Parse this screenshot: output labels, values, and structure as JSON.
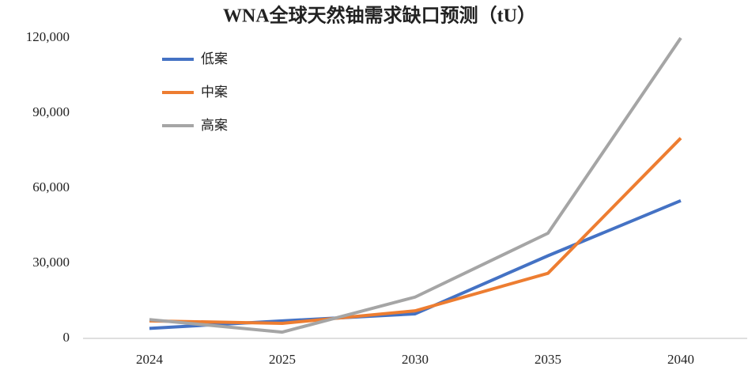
{
  "chart_data": {
    "type": "line",
    "title": "WNA全球天然铀需求缺口预测（tU）",
    "categories": [
      "2024",
      "2025",
      "2030",
      "2035",
      "2040"
    ],
    "series": [
      {
        "name": "低案",
        "color": "#4472c4",
        "values": [
          4000,
          7000,
          9800,
          33000,
          55000
        ]
      },
      {
        "name": "中案",
        "color": "#ed7d31",
        "values": [
          7000,
          6000,
          11000,
          26000,
          80000
        ]
      },
      {
        "name": "高案",
        "color": "#a5a5a5",
        "values": [
          7500,
          2500,
          16500,
          42000,
          120000
        ]
      }
    ],
    "ylim": [
      0,
      120000
    ],
    "yticks": [
      0,
      {
        "value": 30000,
        "label": "30,000"
      },
      {
        "value": 60000,
        "label": "60,000"
      },
      {
        "value": 90000,
        "label": "90,000"
      },
      {
        "value": 120000,
        "label": "120,000"
      }
    ],
    "legend": "upper left",
    "grid": false
  }
}
